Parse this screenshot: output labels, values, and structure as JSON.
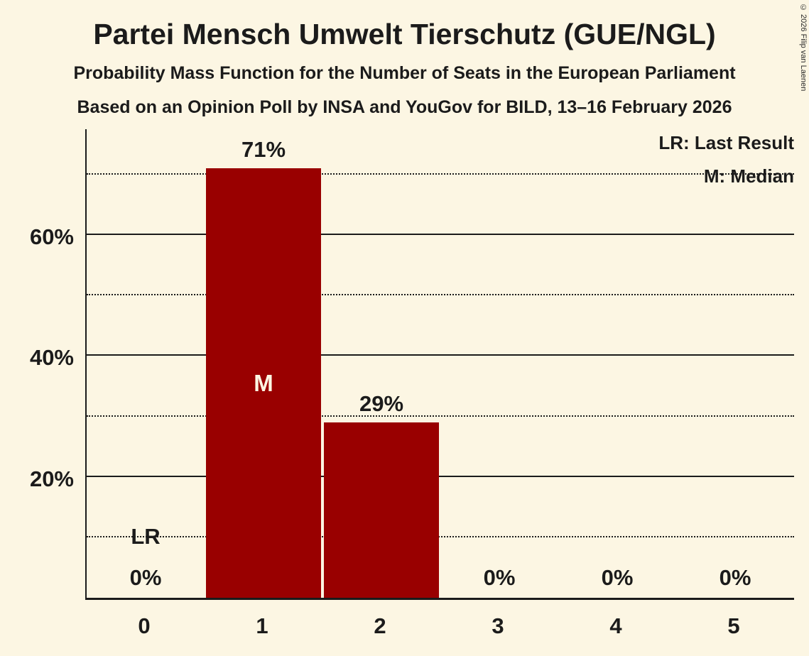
{
  "copyright": "© 2026 Filip van Laenen",
  "colors": {
    "background": "#FCF6E3",
    "bar": "#990000",
    "bar_label": "#FCF6E3",
    "text": "#1B1B1B"
  },
  "chart_data": {
    "type": "bar",
    "title": "Partei Mensch Umwelt Tierschutz (GUE/NGL)",
    "subtitle": [
      "Probability Mass Function for the Number of Seats in the European Parliament",
      "Based on an Opinion Poll by INSA and YouGov for BILD, 13–16 February 2026"
    ],
    "legend": {
      "lr": "LR: Last Result",
      "m": "M: Median"
    },
    "categories": [
      "0",
      "1",
      "2",
      "3",
      "4",
      "5"
    ],
    "values": [
      0,
      71,
      29,
      0,
      0,
      0
    ],
    "value_labels": [
      "0%",
      "71%",
      "29%",
      "0%",
      "0%",
      "0%"
    ],
    "median_category": "1",
    "median_marker": "M",
    "last_result_category": "0",
    "last_result_marker": "LR",
    "xlabel": "",
    "ylabel": "",
    "ylim": [
      0,
      77.5
    ],
    "yticks": [
      20,
      40,
      60
    ],
    "ytick_labels": [
      "20%",
      "40%",
      "60%"
    ],
    "solid_gridlines": [
      20,
      40,
      60
    ],
    "dotted_gridlines": [
      10,
      30,
      50,
      70
    ],
    "grid": "on",
    "legend_position": "top-right"
  }
}
